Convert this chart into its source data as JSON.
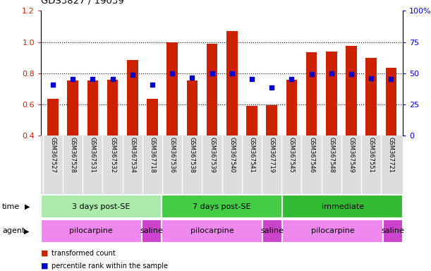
{
  "title": "GDS3827 / 19039",
  "samples": [
    "GSM367527",
    "GSM367528",
    "GSM367531",
    "GSM367532",
    "GSM367534",
    "GSM367718",
    "GSM367536",
    "GSM367538",
    "GSM367539",
    "GSM367540",
    "GSM367541",
    "GSM367719",
    "GSM367545",
    "GSM367546",
    "GSM367548",
    "GSM367549",
    "GSM367551",
    "GSM367721"
  ],
  "red_values": [
    0.635,
    0.755,
    0.755,
    0.758,
    0.885,
    0.635,
    1.0,
    0.755,
    0.99,
    1.07,
    0.59,
    0.595,
    0.76,
    0.935,
    0.94,
    0.975,
    0.9,
    0.835
  ],
  "blue_values": [
    0.725,
    0.762,
    0.762,
    0.762,
    0.79,
    0.728,
    0.8,
    0.772,
    0.8,
    0.8,
    0.762,
    0.71,
    0.762,
    0.795,
    0.8,
    0.795,
    0.768,
    0.762
  ],
  "ylim_left": [
    0.4,
    1.2
  ],
  "ylim_right": [
    0,
    100
  ],
  "yticks_left": [
    0.4,
    0.6,
    0.8,
    1.0,
    1.2
  ],
  "yticks_right": [
    0,
    25,
    50,
    75,
    100
  ],
  "ytick_labels_right": [
    "0",
    "25",
    "50",
    "75",
    "100%"
  ],
  "hlines": [
    0.6,
    0.8,
    1.0
  ],
  "bar_color": "#cc2200",
  "dot_color": "#0000cc",
  "bar_width": 0.55,
  "time_groups": [
    {
      "label": "3 days post-SE",
      "start": 0,
      "end": 5,
      "color": "#aaeaaa"
    },
    {
      "label": "7 days post-SE",
      "start": 6,
      "end": 11,
      "color": "#44cc44"
    },
    {
      "label": "immediate",
      "start": 12,
      "end": 17,
      "color": "#33bb33"
    }
  ],
  "agent_groups": [
    {
      "label": "pilocarpine",
      "start": 0,
      "end": 4,
      "color": "#ee88ee"
    },
    {
      "label": "saline",
      "start": 5,
      "end": 5,
      "color": "#cc44cc"
    },
    {
      "label": "pilocarpine",
      "start": 6,
      "end": 10,
      "color": "#ee88ee"
    },
    {
      "label": "saline",
      "start": 11,
      "end": 11,
      "color": "#cc44cc"
    },
    {
      "label": "pilocarpine",
      "start": 12,
      "end": 16,
      "color": "#ee88ee"
    },
    {
      "label": "saline",
      "start": 17,
      "end": 17,
      "color": "#cc44cc"
    }
  ],
  "legend_items": [
    {
      "label": "transformed count",
      "color": "#cc2200"
    },
    {
      "label": "percentile rank within the sample",
      "color": "#0000cc"
    }
  ],
  "background_color": "#ffffff",
  "tick_color_left": "#cc2200",
  "tick_color_right": "#0000cc",
  "label_bg_color": "#dddddd",
  "label_sep_color": "#ffffff"
}
